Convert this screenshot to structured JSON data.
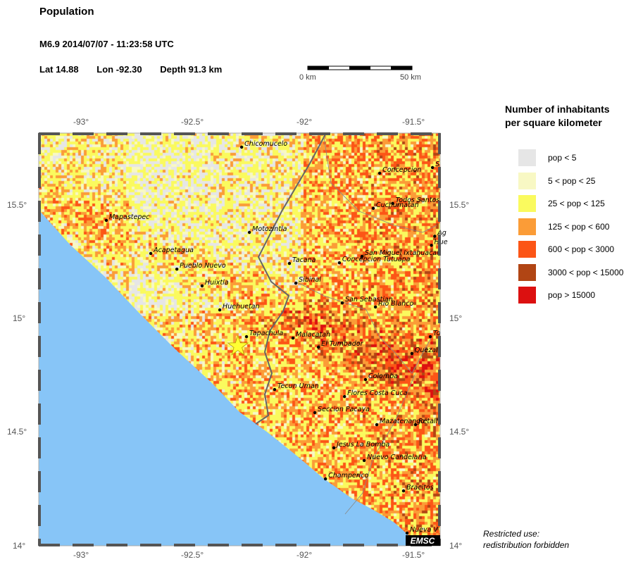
{
  "header": {
    "title": "Population",
    "event": "M6.9  2014/07/07 - 11:23:58 UTC",
    "lat": "Lat 14.88",
    "lon": "Lon -92.30",
    "depth": "Depth  91.3 km"
  },
  "scale_bar": {
    "start_label": "0 km",
    "end_label": "50 km"
  },
  "map": {
    "lon_ticks": [
      "-93°",
      "-92.5°",
      "-92°",
      "-91.5°"
    ],
    "lat_ticks": [
      "15.5°",
      "15°",
      "14.5°",
      "14°"
    ],
    "epicenter": {
      "lat": 14.88,
      "lon": -92.3,
      "icon": "star-icon",
      "color": "#ffff33"
    },
    "ocean_color": "#87c5f7",
    "watermark": "EMSC",
    "cities": [
      {
        "name": "Chicomucelo",
        "lat": 15.758,
        "lon": -92.283
      },
      {
        "name": "Mapastepec",
        "lat": 15.435,
        "lon": -92.895
      },
      {
        "name": "Motozintla",
        "lat": 15.382,
        "lon": -92.248
      },
      {
        "name": "Acapetagua",
        "lat": 15.289,
        "lon": -92.694
      },
      {
        "name": "Pueblo Nuevo",
        "lat": 15.22,
        "lon": -92.576
      },
      {
        "name": "Huixtla",
        "lat": 15.146,
        "lon": -92.462
      },
      {
        "name": "Huehuetan",
        "lat": 15.04,
        "lon": -92.382
      },
      {
        "name": "Tapachula",
        "lat": 14.922,
        "lon": -92.261
      },
      {
        "name": "Tacana",
        "lat": 15.245,
        "lon": -92.067
      },
      {
        "name": "Sibinal",
        "lat": 15.158,
        "lon": -92.038
      },
      {
        "name": "Malacatan",
        "lat": 14.916,
        "lon": -92.051
      },
      {
        "name": "El Tumbador",
        "lat": 14.876,
        "lon": -91.936
      },
      {
        "name": "Tecun Uman",
        "lat": 14.689,
        "lon": -92.134
      },
      {
        "name": "Concepcion",
        "lat": 15.643,
        "lon": -91.659
      },
      {
        "name": "Todos Santos",
        "lat": 15.51,
        "lon": -91.6
      },
      {
        "name": "Cuchumatan",
        "lat": 15.488,
        "lon": -91.688
      },
      {
        "name": "S",
        "lat": 15.668,
        "lon": -91.42
      },
      {
        "name": "Ag",
        "lat": 15.365,
        "lon": -91.41
      },
      {
        "name": "Hue",
        "lat": 15.325,
        "lon": -91.425
      },
      {
        "name": "San Miguel Ixtahuacan",
        "lat": 15.276,
        "lon": -91.739
      },
      {
        "name": "Concepcion Tutuapa",
        "lat": 15.248,
        "lon": -91.841
      },
      {
        "name": "San Sebastian",
        "lat": 15.071,
        "lon": -91.828
      },
      {
        "name": "Rio Blanco",
        "lat": 15.053,
        "lon": -91.678
      },
      {
        "name": "To",
        "lat": 14.922,
        "lon": -91.43
      },
      {
        "name": "Quezal",
        "lat": 14.848,
        "lon": -91.513
      },
      {
        "name": "Colomba",
        "lat": 14.733,
        "lon": -91.723
      },
      {
        "name": "Flores Costa Cuca",
        "lat": 14.658,
        "lon": -91.818
      },
      {
        "name": "Seccion Pacaya",
        "lat": 14.587,
        "lon": -91.952
      },
      {
        "name": "Mazatenango",
        "lat": 14.534,
        "lon": -91.672
      },
      {
        "name": "Retalh",
        "lat": 14.534,
        "lon": -91.497
      },
      {
        "name": "Jesus La Bomba",
        "lat": 14.432,
        "lon": -91.866
      },
      {
        "name": "Nuevo Candelaria",
        "lat": 14.376,
        "lon": -91.729
      },
      {
        "name": "Champerico",
        "lat": 14.295,
        "lon": -91.904
      },
      {
        "name": "Bracitos",
        "lat": 14.242,
        "lon": -91.551
      },
      {
        "name": "Nueva V",
        "lat": 14.056,
        "lon": -91.535
      }
    ]
  },
  "legend": {
    "title_line1": "Number of inhabitants",
    "title_line2": "per square kilometer",
    "items": [
      {
        "label": "pop < 5",
        "color": "#e6e6e6"
      },
      {
        "label": "5 < pop < 25",
        "color": "#f8f8c4"
      },
      {
        "label": "25 < pop < 125",
        "color": "#fafa5e"
      },
      {
        "label": "125 < pop < 600",
        "color": "#fb9c37"
      },
      {
        "label": "600 < pop < 3000",
        "color": "#fc5516"
      },
      {
        "label": "3000 < pop < 15000",
        "color": "#b14514"
      },
      {
        "label": "pop > 15000",
        "color": "#dc1010"
      }
    ]
  },
  "notice": {
    "line1": "Restricted use:",
    "line2": "redistribution forbidden"
  }
}
